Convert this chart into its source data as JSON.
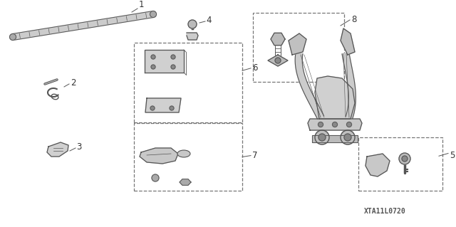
{
  "background_color": "#ffffff",
  "part_code": "XTA11L0720",
  "line_color": "#555555",
  "label_color": "#333333",
  "label_fontsize": 8.5,
  "part_code_fontsize": 7,
  "dashed_color": "#777777"
}
